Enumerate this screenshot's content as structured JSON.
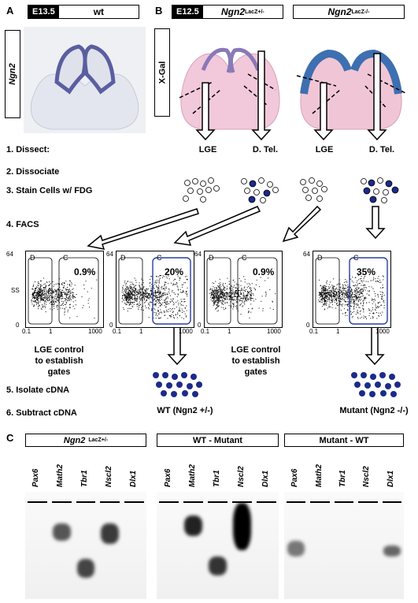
{
  "panelA": {
    "letter": "A",
    "stage": "E13.5",
    "genotype": "wt",
    "probe": "Ngn2"
  },
  "panelB": {
    "letter": "B",
    "stage": "E12.5",
    "het": "Ngn2",
    "het_sup": "LacZ+/-",
    "mut": "Ngn2",
    "mut_sup": "LacZ-/-",
    "stain": "X-Gal"
  },
  "regions": {
    "lge": "LGE",
    "dtel": "D. Tel."
  },
  "steps": [
    "1.  Dissect:",
    "2.  Dissociate",
    "3.  Stain Cells w/ FDG",
    "4.  FACS",
    "5.  Isolate cDNA",
    "6.  Subtract cDNA"
  ],
  "facs": {
    "y_top": "64",
    "y_bottom": "0",
    "x_left": "0.1",
    "x_mid": "1",
    "x_right": "1000",
    "ss": "SS",
    "gate_d": "D",
    "gate_c": "C",
    "plots": [
      {
        "pct": "0.9%"
      },
      {
        "pct": "20%"
      },
      {
        "pct": "0.9%"
      },
      {
        "pct": "35%"
      }
    ]
  },
  "control_label": [
    "LGE control",
    "to establish",
    "gates"
  ],
  "wt_label": "WT (Ngn2 +/-)",
  "mut_label": "Mutant (Ngn2 -/-)",
  "panelC": {
    "letter": "C",
    "blots": [
      {
        "title": "Ngn2",
        "title_sup": "LacZ+/-"
      },
      {
        "title": "WT - Mutant"
      },
      {
        "title": "Mutant - WT"
      }
    ],
    "genes": [
      "Pax6",
      "Math2",
      "Tbr1",
      "Nscl2",
      "Dlx1"
    ]
  }
}
